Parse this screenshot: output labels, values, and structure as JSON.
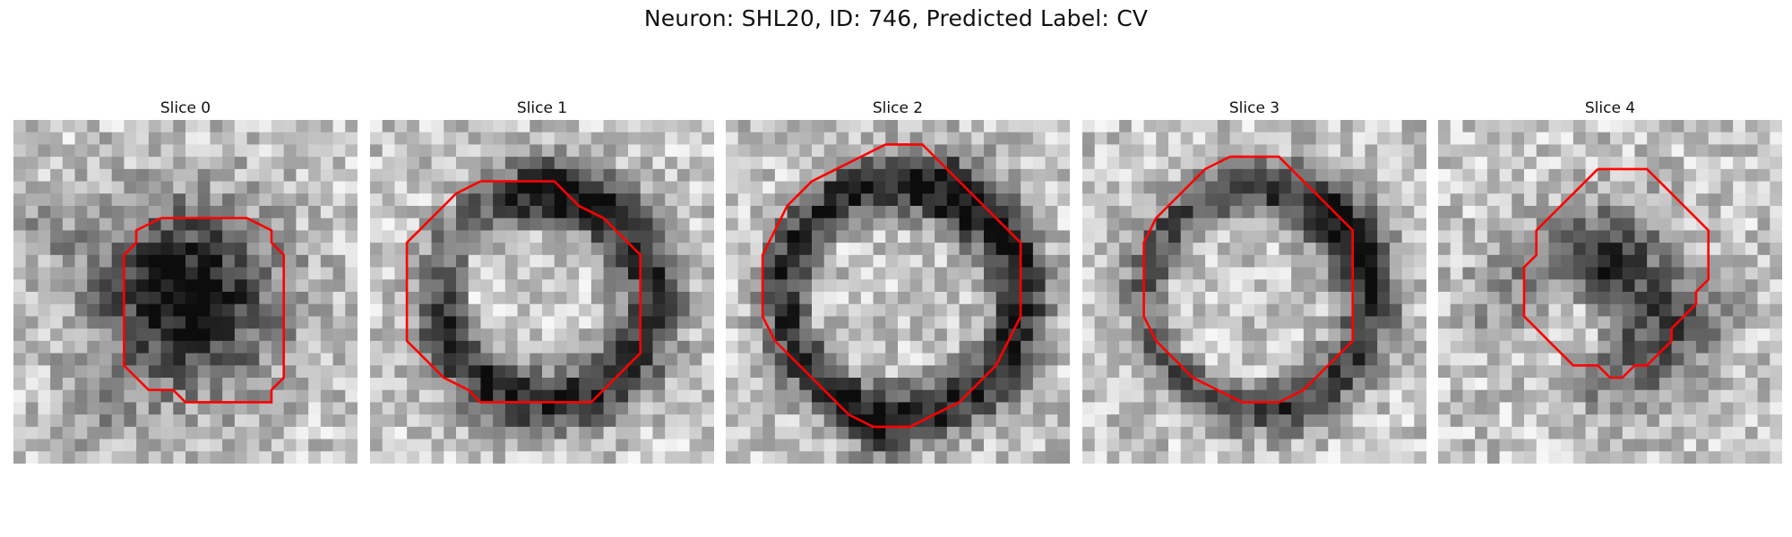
{
  "figure": {
    "title": "Neuron: SHL20, ID: 746, Predicted Label: CV"
  },
  "panels": [
    {
      "title": "Slice 0",
      "pattern": "dark-blob"
    },
    {
      "title": "Slice 1",
      "pattern": "ring-broken"
    },
    {
      "title": "Slice 2",
      "pattern": "ring"
    },
    {
      "title": "Slice 3",
      "pattern": "ring-light"
    },
    {
      "title": "Slice 4",
      "pattern": "arc"
    }
  ],
  "colors": {
    "contour": "#ff0000",
    "background": "#ffffff"
  },
  "image": {
    "colormap": "gray",
    "grid_size": 28
  }
}
